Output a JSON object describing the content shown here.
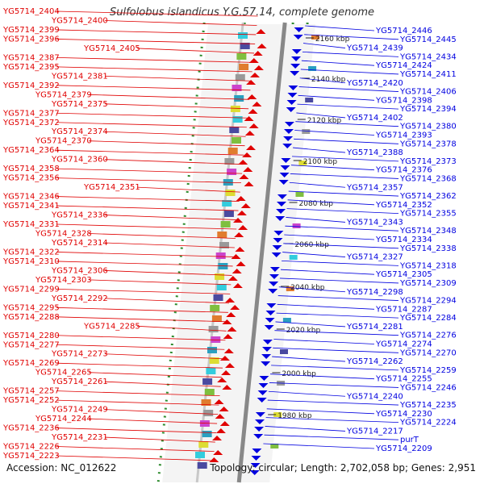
{
  "title": "Sulfolobus islandicus Y.G.57.14, complete genome",
  "accession": "Accession: NC_012622",
  "topology": "Topology: circular; Length: 2,702,058 bp; Genes: 2,951",
  "colors": {
    "forward": "#e00000",
    "reverse": "#0000e0",
    "backbone": "#888888",
    "ticks": "#2e8b2e",
    "scale_text": "#222222"
  },
  "scale_labels": [
    "2160 kbp",
    "2140 kbp",
    "2120 kbp",
    "2100 kbp",
    "2080 kbp",
    "2060 kbp",
    "2040 kbp",
    "2020 kbp",
    "2000 kbp",
    "1980 kbp"
  ],
  "left_labels": [
    "YG5714_2404",
    "YG5714_2400",
    "YG5714_2399",
    "YG5714_2396",
    "YG5714_2405",
    "YG5714_2387",
    "YG5714_2395",
    "YG5714_2381",
    "YG5714_2392",
    "YG5714_2379",
    "YG5714_2375",
    "YG5714_2377",
    "YG5714_2372",
    "YG5714_2374",
    "YG5714_2370",
    "YG5714_2364",
    "YG5714_2360",
    "YG5714_2358",
    "YG5714_2356",
    "YG5714_2351",
    "YG5714_2346",
    "YG5714_2341",
    "YG5714_2336",
    "YG5714_2331",
    "YG5714_2328",
    "YG5714_2314",
    "YG5714_2322",
    "YG5714_2310",
    "YG5714_2306",
    "YG5714_2303",
    "YG5714_2299",
    "YG5714_2292",
    "YG5714_2295",
    "YG5714_2288",
    "YG5714_2285",
    "YG5714_2280",
    "YG5714_2277",
    "YG5714_2273",
    "YG5714_2269",
    "YG5714_2265",
    "YG5714_2261",
    "YG5714_2257",
    "YG5714_2252",
    "YG5714_2249",
    "YG5714_2244",
    "YG5714_2236",
    "YG5714_2231",
    "YG5714_2226",
    "YG5714_2223"
  ],
  "right_labels": [
    "YG5714_2446",
    "YG5714_2445",
    "YG5714_2439",
    "YG5714_2434",
    "YG5714_2424",
    "YG5714_2411",
    "YG5714_2420",
    "YG5714_2406",
    "YG5714_2398",
    "YG5714_2394",
    "YG5714_2402",
    "YG5714_2380",
    "YG5714_2393",
    "YG5714_2378",
    "YG5714_2388",
    "YG5714_2373",
    "YG5714_2376",
    "YG5714_2368",
    "YG5714_2357",
    "YG5714_2362",
    "YG5714_2352",
    "YG5714_2355",
    "YG5714_2343",
    "YG5714_2348",
    "YG5714_2334",
    "YG5714_2338",
    "YG5714_2327",
    "YG5714_2318",
    "YG5714_2305",
    "YG5714_2309",
    "YG5714_2298",
    "YG5714_2294",
    "YG5714_2287",
    "YG5714_2284",
    "YG5714_2281",
    "YG5714_2276",
    "YG5714_2274",
    "YG5714_2270",
    "YG5714_2262",
    "YG5714_2259",
    "YG5714_2255",
    "YG5714_2246",
    "YG5714_2240",
    "YG5714_2235",
    "YG5714_2230",
    "YG5714_2224",
    "YG5714_2217",
    "purT",
    "YG5714_2209"
  ]
}
